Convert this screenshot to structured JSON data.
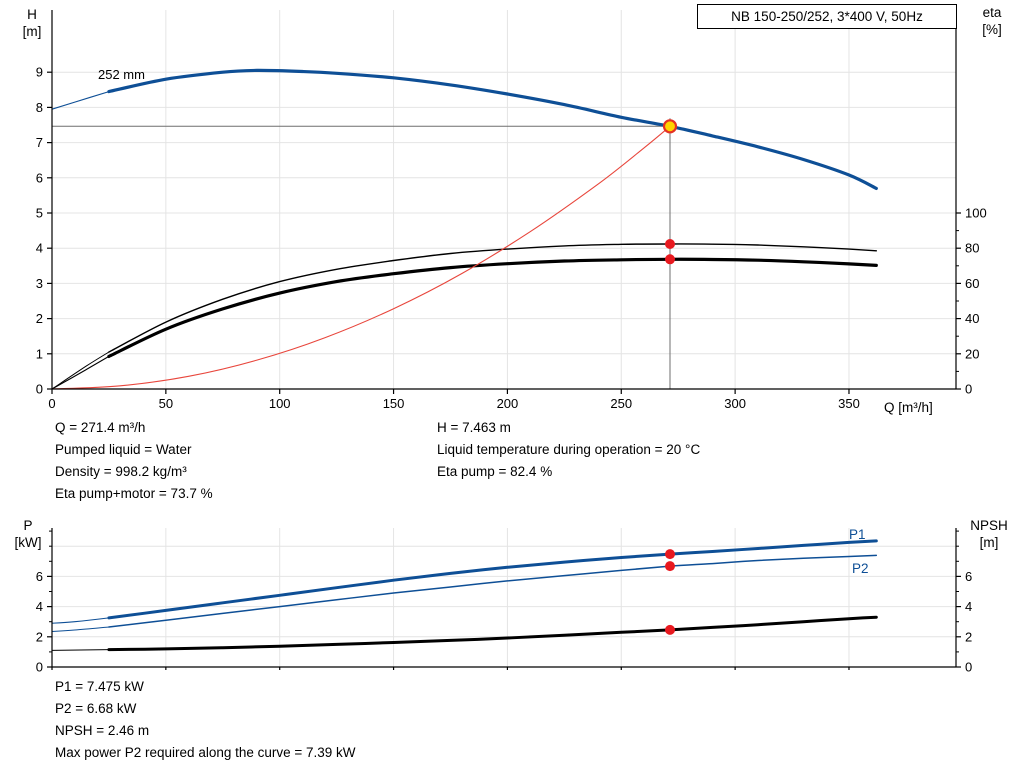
{
  "title_box": "NB 150-250/252, 3*400 V, 50Hz",
  "labels": {
    "h_axis": "H\n[m]",
    "eta_axis": "eta\n[%]",
    "q_axis": "Q [m³/h]",
    "impeller": "252 mm",
    "p_axis": "P\n[kW]",
    "npsh_axis": "NPSH\n[m]",
    "p1": "P1",
    "p2": "P2"
  },
  "mid_info": {
    "left": [
      "Q = 271.4 m³/h",
      "Pumped liquid = Water",
      "Density = 998.2 kg/m³",
      "Eta pump+motor = 73.7 %"
    ],
    "right": [
      "H = 7.463 m",
      "Liquid temperature during operation = 20 °C",
      "Eta pump = 82.4 %"
    ]
  },
  "lower_info": [
    "P1 = 7.475 kW",
    "P2 = 6.68 kW",
    "NPSH = 2.46 m",
    "Max power P2 required along the curve = 7.39 kW"
  ],
  "colors": {
    "curve_blue": "#0e4f96",
    "system_red": "#e8463c",
    "dot_red": "#e8191f",
    "op_fill": "#ffd400",
    "op_stroke": "#e53123"
  },
  "chart_data": [
    {
      "type": "line",
      "title": "NB 150-250/252, 3*400 V, 50Hz",
      "x": {
        "label": "Q [m³/h]",
        "min": 0,
        "max": 397,
        "ticks": [
          0,
          50,
          100,
          150,
          200,
          250,
          300,
          350
        ],
        "show_labels": true
      },
      "y_left": {
        "label": "H [m]",
        "min": 0,
        "max": 10.8,
        "ticks": [
          0,
          1,
          2,
          3,
          4,
          5,
          6,
          7,
          8,
          9
        ]
      },
      "y_right": {
        "label": "eta [%]",
        "ticks": [
          0,
          20,
          40,
          60,
          80,
          100
        ],
        "minor_ticks": [
          10,
          30,
          50,
          70,
          90
        ],
        "m_per_percent": 0.05
      },
      "legend_note": "blue = head curve 252 mm, thin black = eta pump, thick black = eta pump+motor, red = system curve",
      "series": [
        {
          "name": "head-252mm",
          "axis": "left",
          "unit": "m",
          "color": "#0e4f96",
          "width": 3.2,
          "thin_until": 25,
          "points": [
            [
              0,
              7.95
            ],
            [
              10,
              8.15
            ],
            [
              25,
              8.45
            ],
            [
              50,
              8.8
            ],
            [
              75,
              9.0
            ],
            [
              90,
              9.05
            ],
            [
              110,
              9.02
            ],
            [
              125,
              8.97
            ],
            [
              150,
              8.84
            ],
            [
              175,
              8.64
            ],
            [
              200,
              8.38
            ],
            [
              225,
              8.08
            ],
            [
              250,
              7.72
            ],
            [
              271.4,
              7.463
            ],
            [
              290,
              7.19
            ],
            [
              310,
              6.88
            ],
            [
              330,
              6.52
            ],
            [
              350,
              6.08
            ],
            [
              362,
              5.7
            ]
          ]
        },
        {
          "name": "eta-pump",
          "axis": "right",
          "unit": "%",
          "color": "#000000",
          "width": 1.4,
          "thin_until": 25,
          "points": [
            [
              0,
              0
            ],
            [
              15,
              13
            ],
            [
              25,
              21
            ],
            [
              50,
              38
            ],
            [
              75,
              51
            ],
            [
              100,
              61
            ],
            [
              125,
              68
            ],
            [
              150,
              73
            ],
            [
              175,
              77
            ],
            [
              200,
              79.5
            ],
            [
              225,
              81.3
            ],
            [
              250,
              82.2
            ],
            [
              271.4,
              82.4
            ],
            [
              290,
              82.3
            ],
            [
              310,
              81.8
            ],
            [
              330,
              80.8
            ],
            [
              350,
              79.5
            ],
            [
              362,
              78.5
            ]
          ]
        },
        {
          "name": "eta-pump-motor",
          "axis": "right",
          "unit": "%",
          "color": "#000000",
          "width": 3.2,
          "thin_until": 25,
          "points": [
            [
              0,
              0
            ],
            [
              15,
              11
            ],
            [
              25,
              18.5
            ],
            [
              50,
              34
            ],
            [
              75,
              45.5
            ],
            [
              100,
              54.5
            ],
            [
              125,
              61
            ],
            [
              150,
              65.5
            ],
            [
              175,
              69
            ],
            [
              200,
              71.2
            ],
            [
              225,
              72.7
            ],
            [
              250,
              73.4
            ],
            [
              271.4,
              73.7
            ],
            [
              290,
              73.6
            ],
            [
              310,
              73.2
            ],
            [
              330,
              72.3
            ],
            [
              350,
              71.1
            ],
            [
              362,
              70.2
            ]
          ]
        },
        {
          "name": "system-curve",
          "axis": "left",
          "unit": "m",
          "color": "#e8463c",
          "width": 1.1,
          "points": [
            [
              0,
              0
            ],
            [
              30,
              0.09
            ],
            [
              60,
              0.36
            ],
            [
              90,
              0.82
            ],
            [
              120,
              1.46
            ],
            [
              150,
              2.28
            ],
            [
              180,
              3.28
            ],
            [
              210,
              4.47
            ],
            [
              240,
              5.83
            ],
            [
              260,
              6.85
            ],
            [
              271.4,
              7.463
            ]
          ]
        }
      ],
      "operating_point": {
        "q": 271.4,
        "h": 7.463,
        "fill": "#ffd400",
        "stroke": "#e53123"
      },
      "marker_dots": [
        {
          "series": "eta-pump",
          "q": 271.4,
          "v": 82.4
        },
        {
          "series": "eta-pump-motor",
          "q": 271.4,
          "v": 73.7
        }
      ],
      "impeller_label": "252 mm"
    },
    {
      "type": "line",
      "x": {
        "min": 0,
        "max": 397,
        "ticks": [
          0,
          50,
          100,
          150,
          200,
          250,
          300,
          350
        ],
        "show_labels": false
      },
      "y_left": {
        "label": "P [kW]",
        "min": 0,
        "max": 9.2,
        "ticks": [
          0,
          2,
          4,
          6
        ],
        "minor_ticks": [
          1,
          3,
          5,
          7,
          8,
          9
        ]
      },
      "y_right": {
        "label": "NPSH [m]",
        "ticks": [
          0,
          2,
          4,
          6
        ],
        "minor_ticks": [
          1,
          3,
          5,
          7,
          8,
          9
        ]
      },
      "legend_note": "thick blue = P1, thin blue = P2, thick black = NPSH",
      "series": [
        {
          "name": "P1",
          "axis": "left",
          "unit": "kW",
          "color": "#0e4f96",
          "width": 3.0,
          "thin_until": 25,
          "points": [
            [
              0,
              2.9
            ],
            [
              10,
              3.0
            ],
            [
              25,
              3.25
            ],
            [
              50,
              3.75
            ],
            [
              75,
              4.25
            ],
            [
              100,
              4.75
            ],
            [
              125,
              5.25
            ],
            [
              150,
              5.75
            ],
            [
              175,
              6.2
            ],
            [
              200,
              6.6
            ],
            [
              225,
              6.95
            ],
            [
              250,
              7.25
            ],
            [
              271.4,
              7.475
            ],
            [
              290,
              7.65
            ],
            [
              310,
              7.85
            ],
            [
              330,
              8.05
            ],
            [
              350,
              8.25
            ],
            [
              362,
              8.35
            ]
          ]
        },
        {
          "name": "P2",
          "axis": "left",
          "unit": "kW",
          "color": "#0e4f96",
          "width": 1.5,
          "thin_until": 25,
          "points": [
            [
              0,
              2.35
            ],
            [
              10,
              2.45
            ],
            [
              25,
              2.65
            ],
            [
              50,
              3.1
            ],
            [
              75,
              3.55
            ],
            [
              100,
              4.0
            ],
            [
              125,
              4.45
            ],
            [
              150,
              4.9
            ],
            [
              175,
              5.3
            ],
            [
              200,
              5.7
            ],
            [
              225,
              6.05
            ],
            [
              250,
              6.4
            ],
            [
              271.4,
              6.68
            ],
            [
              290,
              6.85
            ],
            [
              310,
              7.05
            ],
            [
              330,
              7.2
            ],
            [
              350,
              7.32
            ],
            [
              362,
              7.39
            ]
          ]
        },
        {
          "name": "NPSH",
          "axis": "right",
          "unit": "m",
          "color": "#000000",
          "width": 3.0,
          "thin_until": 25,
          "points": [
            [
              0,
              1.1
            ],
            [
              25,
              1.15
            ],
            [
              50,
              1.2
            ],
            [
              75,
              1.28
            ],
            [
              100,
              1.38
            ],
            [
              125,
              1.5
            ],
            [
              150,
              1.62
            ],
            [
              175,
              1.76
            ],
            [
              200,
              1.92
            ],
            [
              225,
              2.1
            ],
            [
              250,
              2.3
            ],
            [
              271.4,
              2.46
            ],
            [
              290,
              2.62
            ],
            [
              310,
              2.8
            ],
            [
              330,
              3.0
            ],
            [
              350,
              3.2
            ],
            [
              362,
              3.3
            ]
          ]
        }
      ],
      "marker_dots": [
        {
          "series": "P1",
          "q": 271.4,
          "v": 7.475
        },
        {
          "series": "P2",
          "q": 271.4,
          "v": 6.68
        },
        {
          "series": "NPSH",
          "q": 271.4,
          "v": 2.46
        }
      ]
    }
  ]
}
